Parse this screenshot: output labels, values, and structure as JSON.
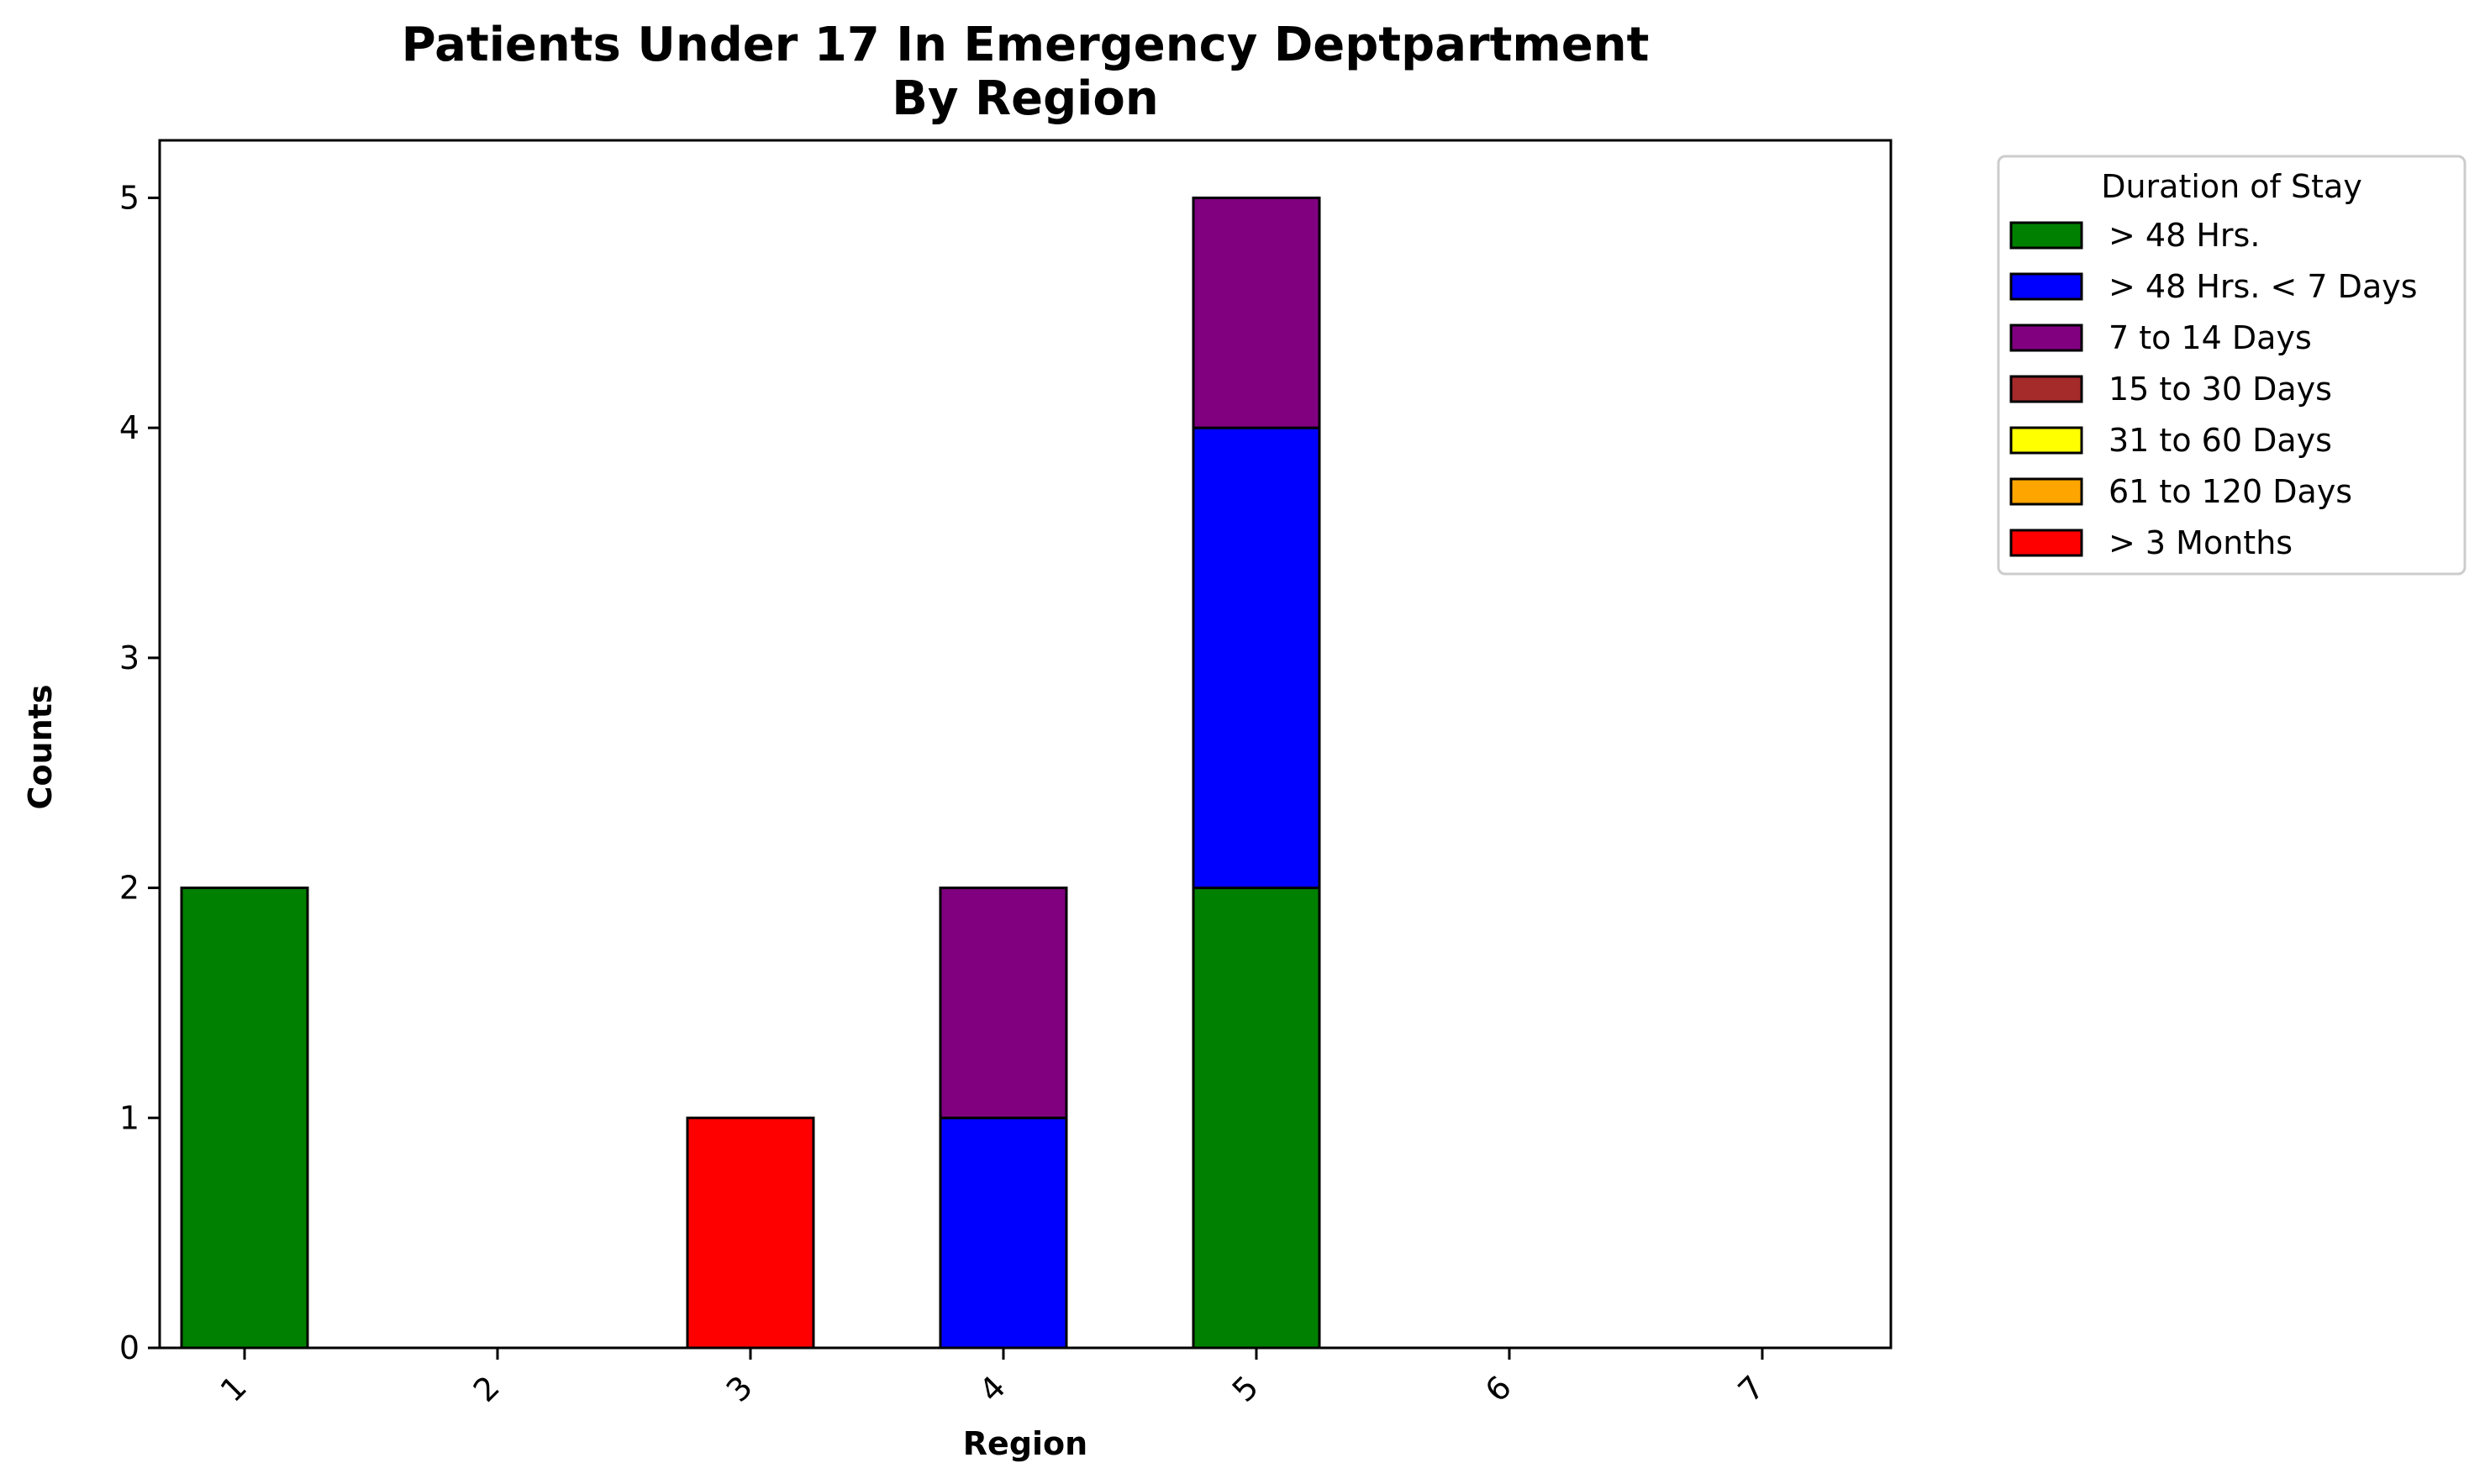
{
  "chart_data": {
    "type": "bar",
    "stacked": true,
    "title": "Patients Under 17 In Emergency Deptpartment\nBy Region",
    "xlabel": "Region",
    "ylabel": "Counts",
    "categories": [
      "1",
      "2",
      "3",
      "4",
      "5",
      "6",
      "7"
    ],
    "ylim": [
      0,
      5.25
    ],
    "yticks": [
      0,
      1,
      2,
      3,
      4,
      5
    ],
    "legend_title": "Duration of Stay",
    "legend_position": "outside-top-right",
    "series": [
      {
        "name": "> 48 Hrs.",
        "color": "#008000",
        "values": [
          2,
          0,
          0,
          0,
          2,
          0,
          0
        ]
      },
      {
        "name": "> 48 Hrs. < 7 Days",
        "color": "#0000ff",
        "values": [
          0,
          0,
          0,
          1,
          2,
          0,
          0
        ]
      },
      {
        "name": "7 to 14 Days",
        "color": "#800080",
        "values": [
          0,
          0,
          0,
          1,
          1,
          0,
          0
        ]
      },
      {
        "name": "15 to 30 Days",
        "color": "#a52a2a",
        "values": [
          0,
          0,
          0,
          0,
          0,
          0,
          0
        ]
      },
      {
        "name": "31 to 60 Days",
        "color": "#ffff00",
        "values": [
          0,
          0,
          0,
          0,
          0,
          0,
          0
        ]
      },
      {
        "name": "61 to 120 Days",
        "color": "#ffa500",
        "values": [
          0,
          0,
          0,
          0,
          0,
          0,
          0
        ]
      },
      {
        "name": "> 3 Months",
        "color": "#ff0000",
        "values": [
          0,
          0,
          1,
          0,
          0,
          0,
          0
        ]
      }
    ]
  }
}
